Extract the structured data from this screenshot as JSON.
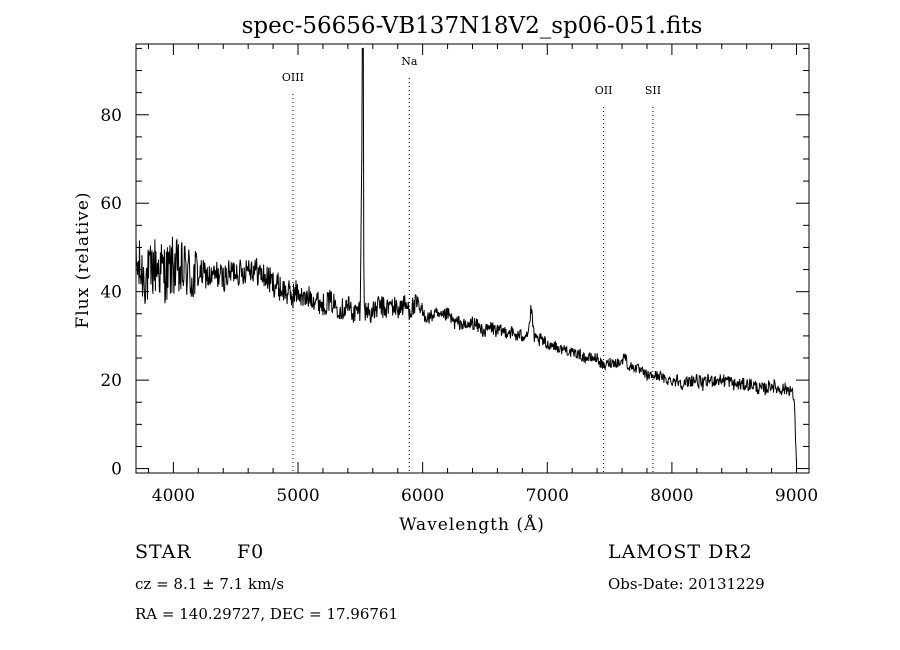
{
  "chart_data": {
    "type": "line",
    "title": "spec-56656-VB137N18V2_sp06-051.fits",
    "xlabel": "Wavelength (Å)",
    "ylabel": "Flux (relative)",
    "xlim": [
      3700,
      9100
    ],
    "ylim": [
      -1,
      96
    ],
    "x_ticks": [
      4000,
      5000,
      6000,
      7000,
      8000,
      9000
    ],
    "y_ticks": [
      0,
      20,
      40,
      60,
      80
    ],
    "grid": false,
    "series": [
      {
        "x": [
          3700,
          3750,
          3800,
          3850,
          3900,
          3950,
          4000,
          4050,
          4100,
          4150,
          4200,
          4250,
          4300,
          4350,
          4400,
          4450,
          4500,
          4550,
          4600,
          4650,
          4700,
          4750,
          4800,
          4850,
          4900,
          4950,
          5000,
          5050,
          5100,
          5150,
          5200,
          5250,
          5300,
          5350,
          5400,
          5450,
          5500,
          5520,
          5530,
          5550,
          5600,
          5650,
          5700,
          5750,
          5800,
          5850,
          5900,
          5950,
          6000,
          6050,
          6100,
          6150,
          6200,
          6250,
          6300,
          6350,
          6400,
          6450,
          6500,
          6550,
          6600,
          6650,
          6700,
          6750,
          6800,
          6850,
          6870,
          6900,
          6950,
          7000,
          7050,
          7100,
          7150,
          7200,
          7250,
          7300,
          7350,
          7400,
          7450,
          7500,
          7550,
          7600,
          7620,
          7650,
          7700,
          7750,
          7800,
          7850,
          7900,
          7950,
          8000,
          8050,
          8100,
          8150,
          8200,
          8250,
          8300,
          8350,
          8400,
          8450,
          8500,
          8550,
          8600,
          8650,
          8700,
          8750,
          8800,
          8850,
          8900,
          8950,
          8980,
          9000
        ],
        "y": [
          46,
          44,
          43,
          46,
          45,
          44,
          46,
          44,
          45,
          43,
          44,
          44,
          43,
          44,
          43,
          44,
          45,
          44,
          46,
          45,
          44,
          43,
          42,
          41,
          40,
          39,
          40,
          38,
          39,
          38,
          37,
          38,
          37,
          36,
          37,
          35,
          36,
          95,
          35,
          36,
          35,
          37,
          36,
          37,
          36,
          37,
          36,
          37,
          35,
          34,
          35,
          34,
          35,
          33,
          33,
          32,
          33,
          32,
          31,
          32,
          31,
          31,
          31,
          30,
          30,
          31,
          36,
          29,
          29,
          28,
          28,
          27,
          27,
          26,
          26,
          25,
          25,
          25,
          23,
          24,
          24,
          24,
          26,
          23,
          23,
          22,
          21,
          21,
          21,
          20,
          20,
          20,
          19,
          20,
          20,
          19,
          20,
          20,
          20,
          20,
          19,
          19,
          19,
          19,
          18,
          18,
          19,
          18,
          18,
          18,
          16,
          2
        ]
      }
    ],
    "lines": [
      {
        "label": "OIII",
        "x": 4959
      },
      {
        "label": "Na",
        "x": 5893
      },
      {
        "label": "OII",
        "x": 7452
      },
      {
        "label": "SII",
        "x": 7848
      }
    ]
  },
  "info": {
    "object_class": "STAR",
    "subclass": "F0",
    "survey": "LAMOST DR2",
    "cz_line": "cz = 8.1 ± 7.1 km/s",
    "obs_date_line": "Obs-Date: 20131229",
    "radec_line": "RA = 140.29727, DEC =  17.96761"
  }
}
